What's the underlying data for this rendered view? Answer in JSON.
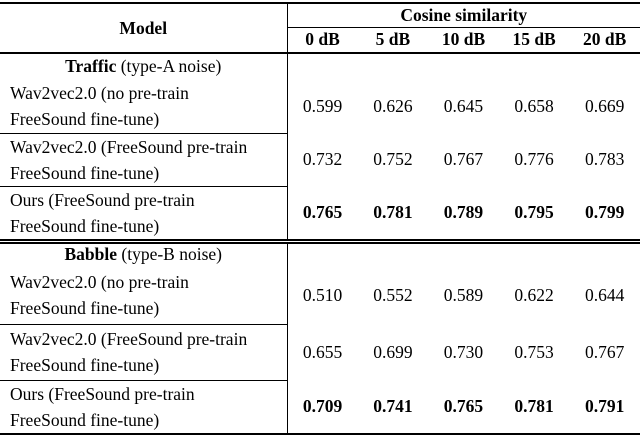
{
  "table": {
    "header": {
      "model": "Model",
      "group": "Cosine similarity",
      "snr": [
        "0 dB",
        "5 dB",
        "10 dB",
        "15 dB",
        "20 dB"
      ]
    },
    "sections": [
      {
        "title_bold": "Traffic",
        "title_rest": " (type-A noise)",
        "rows": [
          {
            "line1": "Wav2vec2.0 (no pre-train",
            "line2": "FreeSound fine-tune)",
            "bold": false,
            "values": [
              "0.599",
              "0.626",
              "0.645",
              "0.658",
              "0.669"
            ]
          },
          {
            "line1": "Wav2vec2.0 (FreeSound pre-train",
            "line2": "FreeSound fine-tune)",
            "bold": false,
            "values": [
              "0.732",
              "0.752",
              "0.767",
              "0.776",
              "0.783"
            ]
          },
          {
            "line1": "Ours (FreeSound pre-train",
            "line2": "FreeSound fine-tune)",
            "bold": true,
            "values": [
              "0.765",
              "0.781",
              "0.789",
              "0.795",
              "0.799"
            ]
          }
        ]
      },
      {
        "title_bold": "Babble",
        "title_rest": " (type-B noise)",
        "rows": [
          {
            "line1": "Wav2vec2.0 (no pre-train",
            "line2": "FreeSound fine-tune)",
            "bold": false,
            "values": [
              "0.510",
              "0.552",
              "0.589",
              "0.622",
              "0.644"
            ]
          },
          {
            "line1": "Wav2vec2.0 (FreeSound pre-train",
            "line2": "FreeSound fine-tune)",
            "bold": false,
            "values": [
              "0.655",
              "0.699",
              "0.730",
              "0.753",
              "0.767"
            ]
          },
          {
            "line1": "Ours (FreeSound pre-train",
            "line2": "FreeSound fine-tune)",
            "bold": true,
            "values": [
              "0.709",
              "0.741",
              "0.765",
              "0.781",
              "0.791"
            ]
          }
        ]
      }
    ]
  },
  "chart_data": {
    "type": "table",
    "title": "Cosine similarity",
    "columns": [
      "Model",
      "0 dB",
      "5 dB",
      "10 dB",
      "15 dB",
      "20 dB"
    ],
    "rows": [
      [
        "Traffic (type-A noise) — Wav2vec2.0 (no pre-train FreeSound fine-tune)",
        0.599,
        0.626,
        0.645,
        0.658,
        0.669
      ],
      [
        "Traffic (type-A noise) — Wav2vec2.0 (FreeSound pre-train FreeSound fine-tune)",
        0.732,
        0.752,
        0.767,
        0.776,
        0.783
      ],
      [
        "Traffic (type-A noise) — Ours (FreeSound pre-train FreeSound fine-tune)",
        0.765,
        0.781,
        0.789,
        0.795,
        0.799
      ],
      [
        "Babble (type-B noise) — Wav2vec2.0 (no pre-train FreeSound fine-tune)",
        0.51,
        0.552,
        0.589,
        0.622,
        0.644
      ],
      [
        "Babble (type-B noise) — Wav2vec2.0 (FreeSound pre-train FreeSound fine-tune)",
        0.655,
        0.699,
        0.73,
        0.753,
        0.767
      ],
      [
        "Babble (type-B noise) — Ours (FreeSound pre-train FreeSound fine-tune)",
        0.709,
        0.741,
        0.765,
        0.781,
        0.791
      ]
    ],
    "bold_rows": [
      2,
      5
    ]
  }
}
